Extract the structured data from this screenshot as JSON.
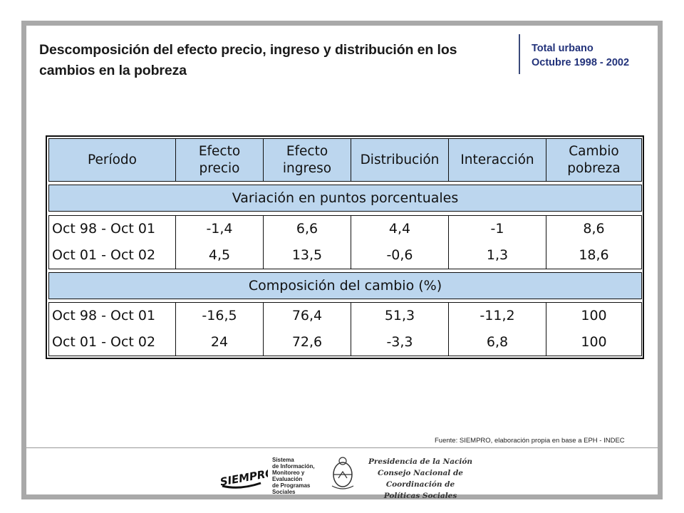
{
  "title": "Descomposición del efecto precio, ingreso y distribución en los cambios en la pobreza",
  "subtitle": {
    "line1": "Total urbano",
    "line2": "Octubre 1998 - 2002"
  },
  "table": {
    "headers": [
      [
        "Período"
      ],
      [
        "Efecto",
        "precio"
      ],
      [
        "Efecto",
        "ingreso"
      ],
      [
        "Distribución"
      ],
      [
        "Interacción"
      ],
      [
        "Cambio",
        "pobreza"
      ]
    ],
    "sections": [
      {
        "label": "Variación en puntos porcentuales",
        "rows": [
          [
            "Oct 98 - Oct 01",
            "-1,4",
            "6,6",
            "4,4",
            "-1",
            "8,6"
          ],
          [
            "Oct 01 - Oct 02",
            "4,5",
            "13,5",
            "-0,6",
            "1,3",
            "18,6"
          ]
        ]
      },
      {
        "label": "Composición del cambio (%)",
        "rows": [
          [
            "Oct 98 - Oct 01",
            "-16,5",
            "76,4",
            "51,3",
            "-11,2",
            "100"
          ],
          [
            "Oct 01 - Oct 02",
            "24",
            "72,6",
            "-3,3",
            "6,8",
            "100"
          ]
        ]
      }
    ]
  },
  "source": "Fuente: SIEMPRO, elaboración propia en base a EPH - INDEC",
  "logos": {
    "siempro_lines": [
      "Sistema",
      "de Información,",
      "Monitoreo y",
      "Evaluación",
      "de Programas",
      "Sociales"
    ],
    "siempro_wordmark": "SIEMPRO",
    "presidencia_lines": [
      "Presidencia de la Nación",
      "Consejo Nacional de Coordinación de",
      "Políticas Sociales"
    ]
  }
}
